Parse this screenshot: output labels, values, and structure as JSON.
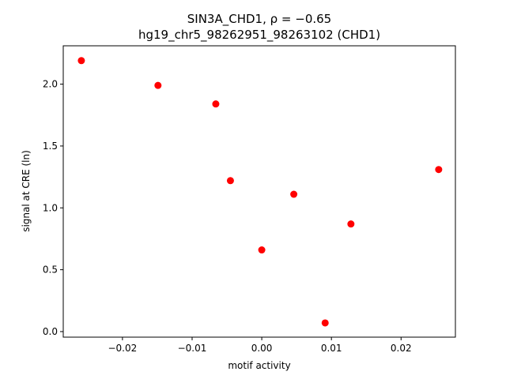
{
  "chart_data": {
    "type": "scatter",
    "title_line1": "SIN3A_CHD1, ρ = −0.65",
    "title_line2": "hg19_chr5_98262951_98263102 (CHD1)",
    "xlabel": "motif activity",
    "ylabel": "signal at CRE (ln)",
    "xlim": [
      -0.0285,
      0.0278
    ],
    "ylim": [
      -0.045,
      2.31
    ],
    "x_ticks": [
      {
        "value": -0.02,
        "label": "−0.02"
      },
      {
        "value": -0.01,
        "label": "−0.01"
      },
      {
        "value": 0.0,
        "label": "0.00"
      },
      {
        "value": 0.01,
        "label": "0.01"
      },
      {
        "value": 0.02,
        "label": "0.02"
      }
    ],
    "y_ticks": [
      {
        "value": 0.0,
        "label": "0.0"
      },
      {
        "value": 0.5,
        "label": "0.5"
      },
      {
        "value": 1.0,
        "label": "1.0"
      },
      {
        "value": 1.5,
        "label": "1.5"
      },
      {
        "value": 2.0,
        "label": "2.0"
      }
    ],
    "marker_color": "#ff0000",
    "grid": false,
    "points": [
      {
        "x": -0.0259,
        "y": 2.19
      },
      {
        "x": -0.0149,
        "y": 1.99
      },
      {
        "x": -0.0066,
        "y": 1.84
      },
      {
        "x": -0.0045,
        "y": 1.22
      },
      {
        "x": 0.0,
        "y": 0.66
      },
      {
        "x": 0.0046,
        "y": 1.11
      },
      {
        "x": 0.0091,
        "y": 0.07
      },
      {
        "x": 0.0128,
        "y": 0.87
      },
      {
        "x": 0.0254,
        "y": 1.31
      }
    ]
  }
}
